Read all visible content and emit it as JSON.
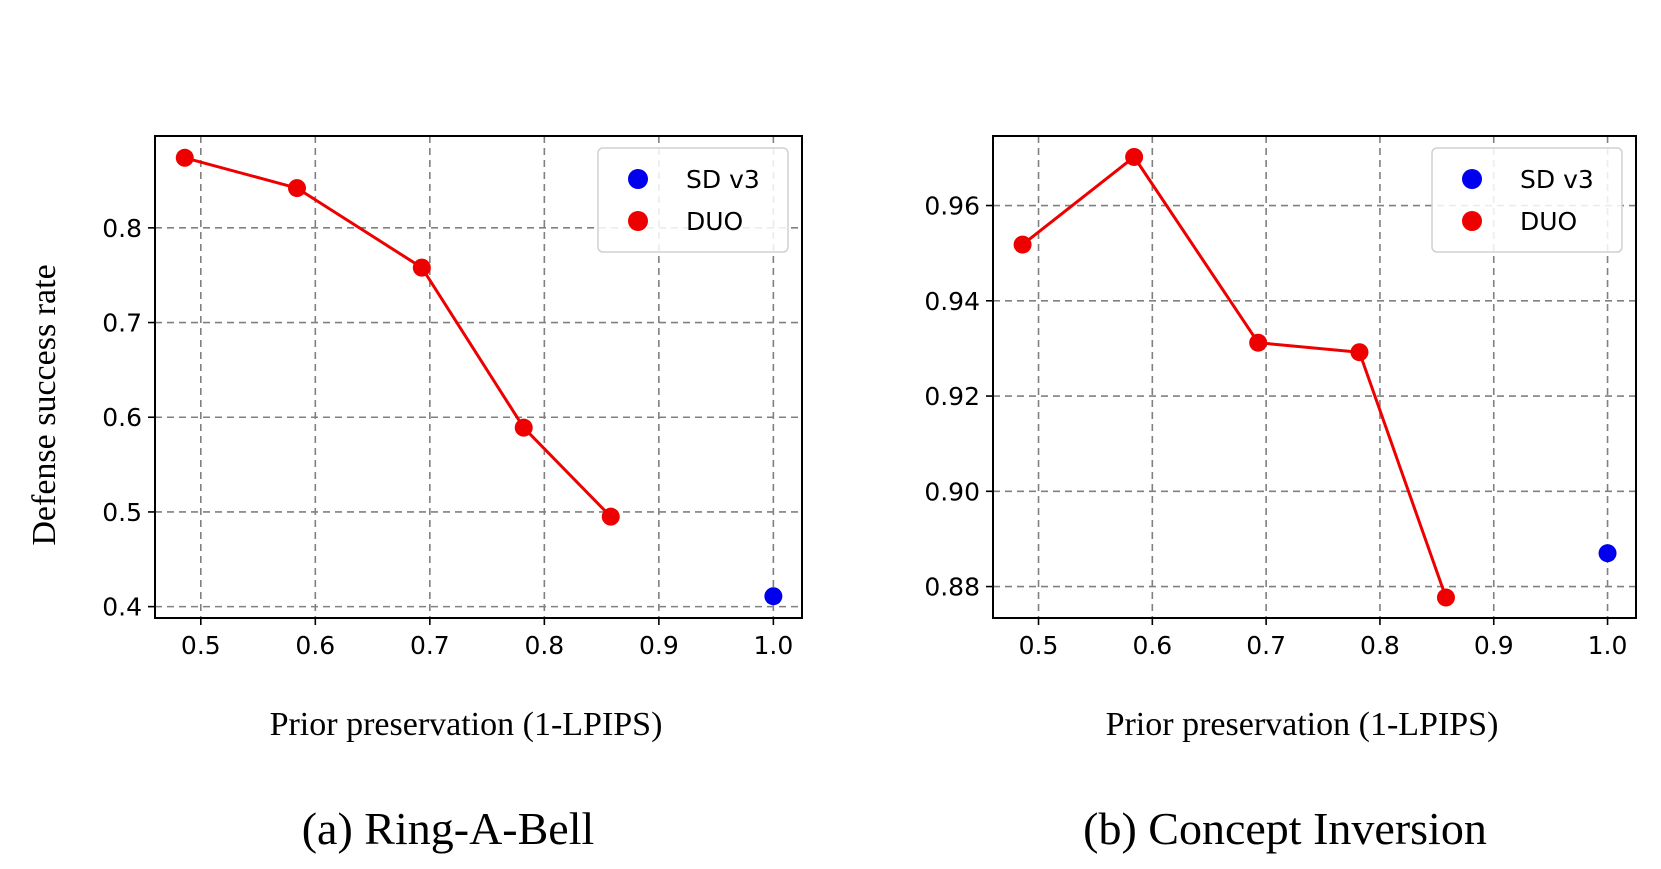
{
  "chart_data": [
    {
      "type": "line",
      "caption": "(a) Ring-A-Bell",
      "xlabel": "Prior preservation (1-LPIPS)",
      "ylabel": "Defense success rate",
      "xlim": [
        0.46,
        1.025
      ],
      "ylim": [
        0.388,
        0.897
      ],
      "xticks": [
        0.5,
        0.6,
        0.7,
        0.8,
        0.9,
        1.0
      ],
      "xtick_labels": [
        "0.5",
        "0.6",
        "0.7",
        "0.8",
        "0.9",
        "1.0"
      ],
      "yticks": [
        0.4,
        0.5,
        0.6,
        0.7,
        0.8
      ],
      "ytick_labels": [
        "0.4",
        "0.5",
        "0.6",
        "0.7",
        "0.8"
      ],
      "grid": true,
      "legend_position": "top-right",
      "series": [
        {
          "name": "SD v3",
          "color": "#0000ee",
          "line": false,
          "x": [
            1.0
          ],
          "y": [
            0.411
          ]
        },
        {
          "name": "DUO",
          "color": "#ee0000",
          "line": true,
          "x": [
            0.486,
            0.584,
            0.693,
            0.782,
            0.858
          ],
          "y": [
            0.874,
            0.842,
            0.758,
            0.589,
            0.495
          ]
        }
      ]
    },
    {
      "type": "line",
      "caption": "(b) Concept Inversion",
      "xlabel": "Prior preservation (1-LPIPS)",
      "ylabel": "",
      "xlim": [
        0.46,
        1.025
      ],
      "ylim": [
        0.8734,
        0.9746
      ],
      "xticks": [
        0.5,
        0.6,
        0.7,
        0.8,
        0.9,
        1.0
      ],
      "xtick_labels": [
        "0.5",
        "0.6",
        "0.7",
        "0.8",
        "0.9",
        "1.0"
      ],
      "yticks": [
        0.88,
        0.9,
        0.92,
        0.94,
        0.96
      ],
      "ytick_labels": [
        "0.88",
        "0.90",
        "0.92",
        "0.94",
        "0.96"
      ],
      "grid": true,
      "legend_position": "top-right",
      "series": [
        {
          "name": "SD v3",
          "color": "#0000ee",
          "line": false,
          "x": [
            1.0
          ],
          "y": [
            0.887
          ]
        },
        {
          "name": "DUO",
          "color": "#ee0000",
          "line": true,
          "x": [
            0.486,
            0.584,
            0.693,
            0.782,
            0.858
          ],
          "y": [
            0.9518,
            0.9702,
            0.9312,
            0.9292,
            0.8777
          ]
        }
      ]
    }
  ]
}
